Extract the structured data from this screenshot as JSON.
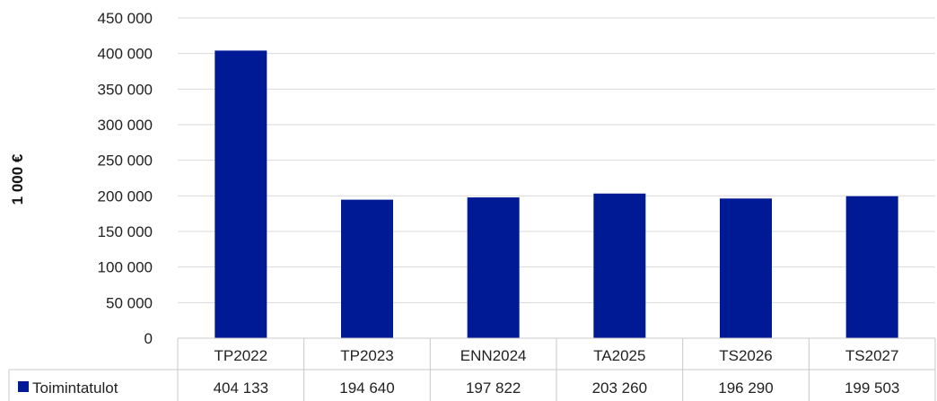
{
  "chart_data": {
    "type": "bar",
    "ylabel": "1 000 €",
    "ylim": [
      0,
      450000
    ],
    "yticks": [
      0,
      50000,
      100000,
      150000,
      200000,
      250000,
      300000,
      350000,
      400000,
      450000
    ],
    "ytick_labels": [
      "0",
      "50 000",
      "100 000",
      "150 000",
      "200 000",
      "250 000",
      "300 000",
      "350 000",
      "400 000",
      "450 000"
    ],
    "grid": true,
    "categories": [
      "TP2022",
      "TP2023",
      "ENN2024",
      "TA2025",
      "TS2026",
      "TS2027"
    ],
    "series": [
      {
        "name": "Toimintatulot",
        "color": "#001a96",
        "values": [
          404133,
          194640,
          197822,
          203260,
          196290,
          199503
        ],
        "value_labels": [
          "404 133",
          "194 640",
          "197 822",
          "203 260",
          "196 290",
          "199 503"
        ]
      }
    ],
    "legend": "data-table-row"
  }
}
